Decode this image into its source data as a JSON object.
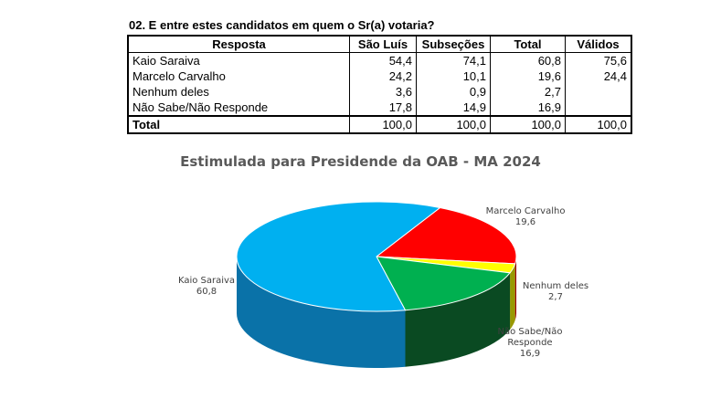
{
  "question": "02. E entre estes candidatos em quem o Sr(a) votaria?",
  "table": {
    "headers": [
      "Resposta",
      "São Luís",
      "Subseções",
      "Total",
      "Válidos"
    ],
    "rows": [
      {
        "label": "Kaio Saraiva",
        "sao_luis": "54,4",
        "subsecoes": "74,1",
        "total": "60,8",
        "validos": "75,6"
      },
      {
        "label": "Marcelo Carvalho",
        "sao_luis": "24,2",
        "subsecoes": "10,1",
        "total": "19,6",
        "validos": "24,4"
      },
      {
        "label": "Nenhum deles",
        "sao_luis": "3,6",
        "subsecoes": "0,9",
        "total": "2,7",
        "validos": ""
      },
      {
        "label": "Não Sabe/Não Responde",
        "sao_luis": "17,8",
        "subsecoes": "14,9",
        "total": "16,9",
        "validos": ""
      }
    ],
    "total_row": {
      "label": "Total",
      "sao_luis": "100,0",
      "subsecoes": "100,0",
      "total": "100,0",
      "validos": "100,0"
    }
  },
  "chart_data": {
    "type": "pie",
    "title": "Estimulada para Presidende da OAB - MA 2024",
    "slices": [
      {
        "label_lines": [
          "Marcelo Carvalho"
        ],
        "value": 19.6,
        "value_text": "19,6",
        "color": "#ff0000",
        "side_color": "#990000"
      },
      {
        "label_lines": [
          "Nenhum deles"
        ],
        "value": 2.7,
        "value_text": "2,7",
        "color": "#ffff00",
        "side_color": "#999900"
      },
      {
        "label_lines": [
          "Não Sabe/Não",
          "Responde"
        ],
        "value": 16.9,
        "value_text": "16,9",
        "color": "#00b050",
        "side_color": "#0a4a22"
      },
      {
        "label_lines": [
          "Kaio Saraiva"
        ],
        "value": 60.8,
        "value_text": "60,8",
        "color": "#00b0f0",
        "side_color": "#0a72a8"
      }
    ]
  }
}
